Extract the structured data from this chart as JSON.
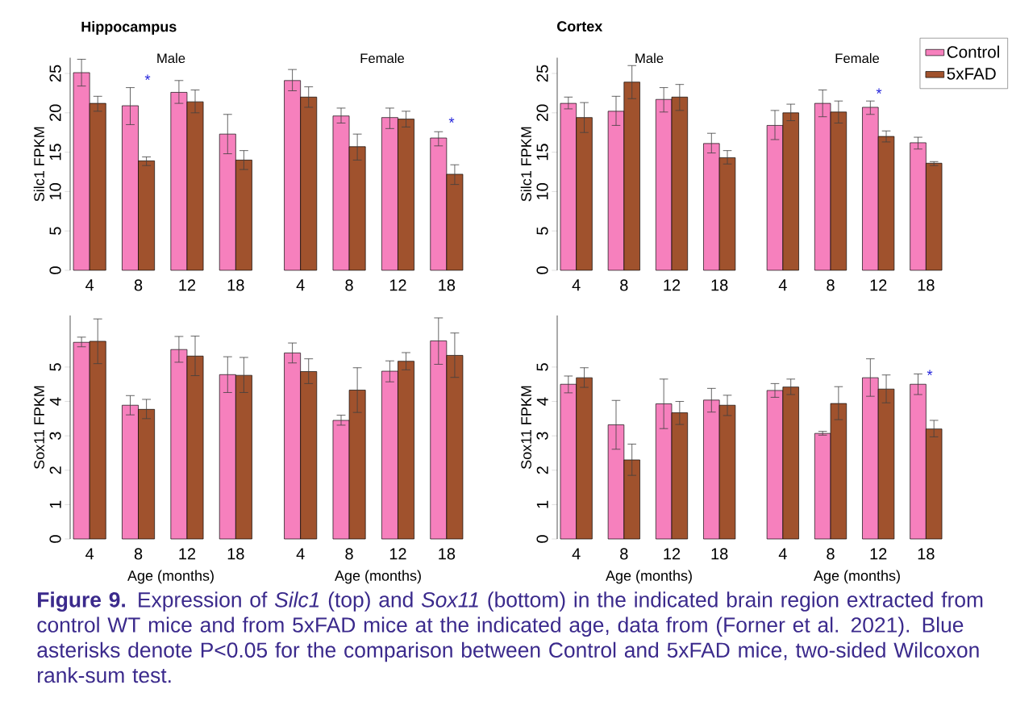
{
  "chart_data": [
    {
      "type": "bar",
      "ylabel": "Silc1 FPKM",
      "categories": [
        "4",
        "8",
        "12",
        "18",
        "4",
        "8",
        "12",
        "18"
      ],
      "ylim": [
        0,
        27
      ],
      "yticks": [
        0,
        5,
        10,
        15,
        20,
        25
      ],
      "annotations": [
        "Hippocampus",
        "Male",
        "Female",
        "*",
        "*"
      ],
      "series": [
        {
          "color": "#f680bd",
          "values": [
            25.1,
            20.9,
            22.6,
            17.3,
            24.1,
            19.6,
            19.4,
            16.8
          ],
          "errors": [
            [
              23.4,
              26.8
            ],
            [
              18.5,
              23.2
            ],
            [
              21.2,
              24.1
            ],
            [
              14.8,
              19.8
            ],
            [
              22.8,
              25.5
            ],
            [
              18.7,
              20.6
            ],
            [
              18.0,
              20.6
            ],
            [
              15.8,
              17.6
            ]
          ]
        },
        {
          "color": "#a0522d",
          "values": [
            21.2,
            13.9,
            21.4,
            14.0,
            22.0,
            15.7,
            19.2,
            12.2
          ],
          "errors": [
            [
              20.2,
              22.1
            ],
            [
              13.3,
              14.4
            ],
            [
              20.0,
              22.9
            ],
            [
              12.8,
              15.2
            ],
            [
              20.7,
              23.3
            ],
            [
              14.0,
              17.3
            ],
            [
              18.2,
              20.2
            ],
            [
              10.9,
              13.4
            ]
          ]
        }
      ]
    },
    {
      "type": "bar",
      "ylabel": "Silc1 FPKM",
      "categories": [
        "4",
        "8",
        "12",
        "18",
        "4",
        "8",
        "12",
        "18"
      ],
      "ylim": [
        0,
        27
      ],
      "yticks": [
        0,
        5,
        10,
        15,
        20,
        25
      ],
      "legend": "top right",
      "annotations": [
        "Cortex",
        "Male",
        "Female",
        "*"
      ],
      "series": [
        {
          "name": "Control",
          "color": "#f680bd",
          "values": [
            21.2,
            20.2,
            21.7,
            16.1,
            18.4,
            21.2,
            20.7,
            16.2
          ],
          "errors": [
            [
              20.5,
              22.0
            ],
            [
              18.4,
              22.1
            ],
            [
              20.1,
              23.2
            ],
            [
              14.9,
              17.4
            ],
            [
              16.6,
              20.3
            ],
            [
              19.5,
              22.9
            ],
            [
              19.8,
              21.5
            ],
            [
              15.4,
              16.9
            ]
          ]
        },
        {
          "name": "5xFAD",
          "color": "#a0522d",
          "values": [
            19.4,
            23.9,
            22.0,
            14.3,
            20.0,
            20.1,
            17.0,
            13.6
          ],
          "errors": [
            [
              17.5,
              21.3
            ],
            [
              21.8,
              26.0
            ],
            [
              20.3,
              23.6
            ],
            [
              13.5,
              15.2
            ],
            [
              19.0,
              21.1
            ],
            [
              18.7,
              21.5
            ],
            [
              16.3,
              17.7
            ],
            [
              13.3,
              13.8
            ]
          ]
        }
      ]
    },
    {
      "type": "bar",
      "xlabel": "Age (months)",
      "ylabel": "Sox11 FPKM",
      "categories": [
        "4",
        "8",
        "12",
        "18",
        "4",
        "8",
        "12",
        "18"
      ],
      "ylim": [
        0,
        6.5
      ],
      "yticks": [
        0,
        1,
        2,
        3,
        4,
        5
      ],
      "annotations": [
        "Age (months)"
      ],
      "series": [
        {
          "color": "#f680bd",
          "values": [
            5.72,
            3.89,
            5.51,
            4.78,
            5.41,
            3.45,
            4.88,
            5.76
          ],
          "errors": [
            [
              5.59,
              5.87
            ],
            [
              3.61,
              4.17
            ],
            [
              5.14,
              5.89
            ],
            [
              4.26,
              5.3
            ],
            [
              5.12,
              5.7
            ],
            [
              3.31,
              3.6
            ],
            [
              4.57,
              5.18
            ],
            [
              5.08,
              6.43
            ]
          ]
        },
        {
          "color": "#a0522d",
          "values": [
            5.75,
            3.77,
            5.32,
            4.76,
            4.87,
            4.33,
            5.17,
            5.34
          ],
          "errors": [
            [
              5.1,
              6.4
            ],
            [
              3.5,
              4.06
            ],
            [
              4.75,
              5.9
            ],
            [
              4.26,
              5.28
            ],
            [
              4.52,
              5.24
            ],
            [
              3.68,
              4.98
            ],
            [
              4.92,
              5.42
            ],
            [
              4.7,
              5.99
            ]
          ]
        }
      ]
    },
    {
      "type": "bar",
      "xlabel": "Age (months)",
      "ylabel": "Sox11 FPKM",
      "categories": [
        "4",
        "8",
        "12",
        "18",
        "4",
        "8",
        "12",
        "18"
      ],
      "ylim": [
        0,
        6.5
      ],
      "yticks": [
        0,
        1,
        2,
        3,
        4,
        5
      ],
      "annotations": [
        "Age (months)",
        "*",
        "**Figure 9.** Expression of *Silc1* (top) and *Sox11* (bottom) in the indicated brain region extracted from control WT mice and from 5xFAD mice at the indicated age, data from (Forner et al. 2021). Blue asterisks denote P<0.05 for the comparison between Control and 5xFAD mice, two-sided Wilcoxon rank-sum test."
      ],
      "series": [
        {
          "color": "#f680bd",
          "values": [
            4.5,
            3.32,
            3.93,
            4.04,
            4.32,
            3.07,
            4.69,
            4.5
          ],
          "errors": [
            [
              4.25,
              4.74
            ],
            [
              2.61,
              4.03
            ],
            [
              3.21,
              4.65
            ],
            [
              3.69,
              4.38
            ],
            [
              4.12,
              4.52
            ],
            [
              3.02,
              3.13
            ],
            [
              4.15,
              5.24
            ],
            [
              4.2,
              4.8
            ]
          ]
        },
        {
          "color": "#a0522d",
          "values": [
            4.69,
            2.3,
            3.67,
            3.89,
            4.42,
            3.94,
            4.36,
            3.2
          ],
          "errors": [
            [
              4.41,
              4.98
            ],
            [
              1.85,
              2.76
            ],
            [
              3.33,
              4.0
            ],
            [
              3.59,
              4.18
            ],
            [
              4.2,
              4.65
            ],
            [
              3.47,
              4.43
            ],
            [
              3.96,
              4.77
            ],
            [
              2.97,
              3.45
            ]
          ]
        }
      ]
    }
  ]
}
